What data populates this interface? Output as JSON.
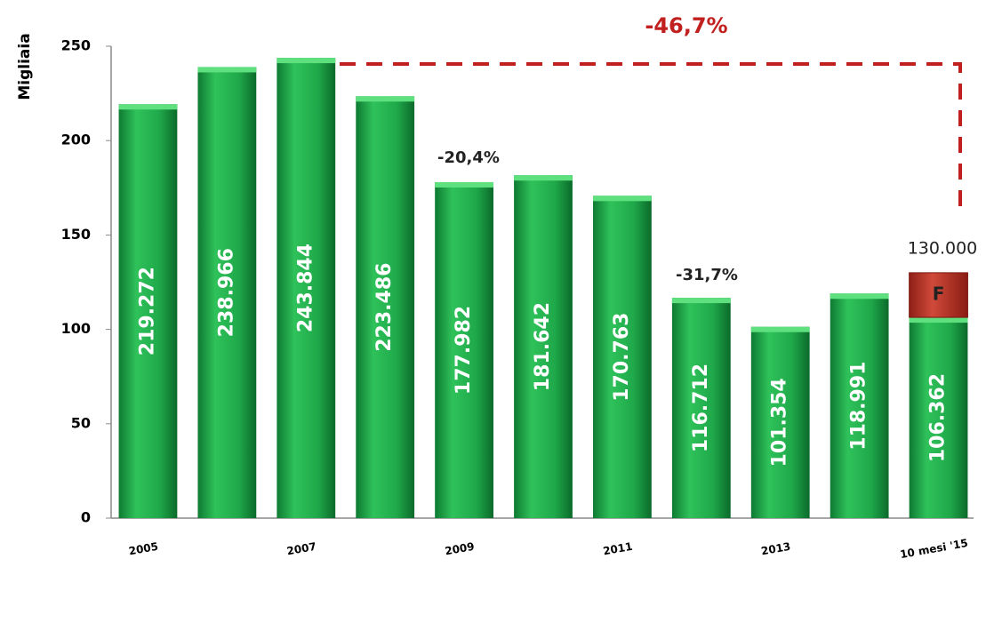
{
  "chart_data": {
    "type": "bar",
    "y_label": "Migliaia",
    "categories": [
      "2005",
      null,
      "2007",
      null,
      "2009",
      null,
      "2011",
      null,
      "2013",
      null,
      "10 mesi '15"
    ],
    "values": [
      219.272,
      238.966,
      243.844,
      223.486,
      177.982,
      181.642,
      170.763,
      116.712,
      101.354,
      118.991,
      106.362
    ],
    "color": "#1fa84a",
    "forecast": {
      "name": "F",
      "color": "#c0392b",
      "values": [
        null,
        null,
        null,
        null,
        null,
        null,
        null,
        null,
        null,
        null,
        23.638
      ]
    },
    "ylim": [
      0,
      250
    ],
    "yticks": [
      0,
      50,
      100,
      150,
      200,
      250
    ],
    "grid": false,
    "annotations": [
      "-46,7%",
      "-20,4%",
      "-31,7%",
      "130.000"
    ]
  }
}
